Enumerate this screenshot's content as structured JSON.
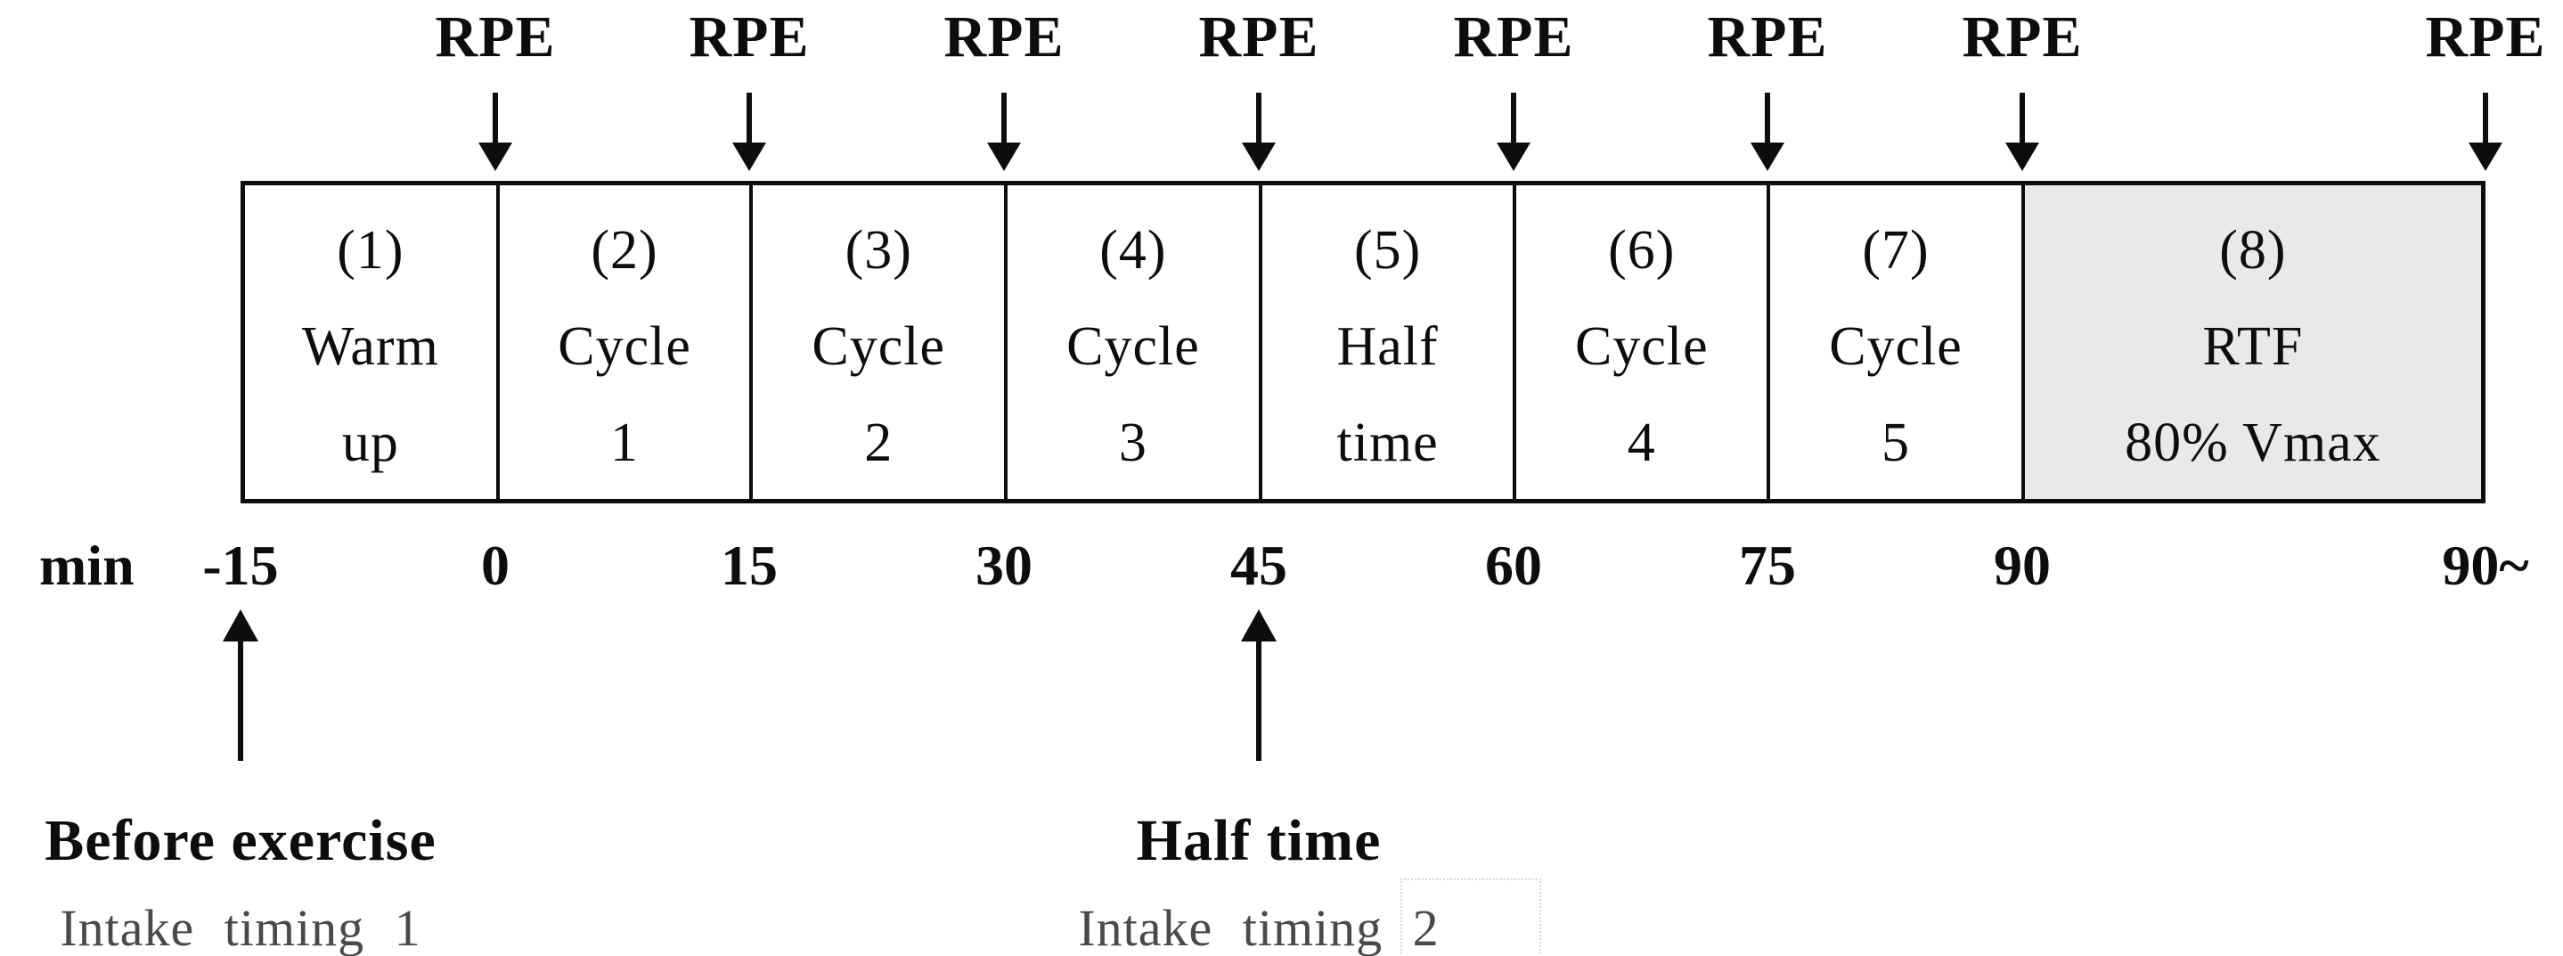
{
  "figure": {
    "title_hidden": "",
    "rpe_label": "RPE",
    "axis_unit_label": "min",
    "segments": [
      {
        "number": "(1)",
        "line1": "Warm",
        "line2": "up",
        "shaded": false
      },
      {
        "number": "(2)",
        "line1": "Cycle",
        "line2": "1",
        "shaded": false
      },
      {
        "number": "(3)",
        "line1": "Cycle",
        "line2": "2",
        "shaded": false
      },
      {
        "number": "(4)",
        "line1": "Cycle",
        "line2": "3",
        "shaded": false
      },
      {
        "number": "(5)",
        "line1": "Half",
        "line2": "time",
        "shaded": false
      },
      {
        "number": "(6)",
        "line1": "Cycle",
        "line2": "4",
        "shaded": false
      },
      {
        "number": "(7)",
        "line1": "Cycle",
        "line2": "5",
        "shaded": false
      },
      {
        "number": "(8)",
        "line1": "RTF",
        "line2": "80% Vmax",
        "shaded": true
      }
    ],
    "time_ticks": [
      "-15",
      "0",
      "15",
      "30",
      "45",
      "60",
      "75",
      "90",
      "90~"
    ],
    "rpe_tick_indices": [
      1,
      2,
      3,
      4,
      5,
      6,
      7,
      8
    ],
    "intake_annotations": [
      {
        "title": "Before exercise",
        "subtitle": "Intake timing 1",
        "tick_index": 0
      },
      {
        "title": "Half time",
        "subtitle": "Intake timing 2",
        "tick_index": 4
      }
    ],
    "colors": {
      "shaded_segment": "#e9e9e9",
      "line": "#0d0d0d",
      "text": "#0d0d0d",
      "subtitle_text": "#4a4a4a"
    }
  }
}
